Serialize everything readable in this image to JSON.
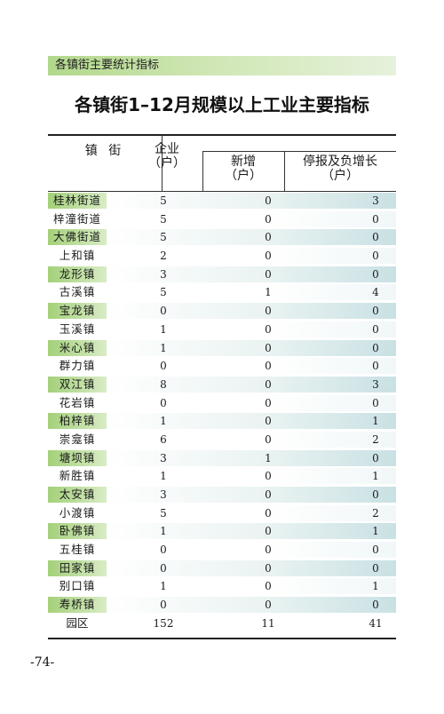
{
  "section_label": "各镇街主要统计指标",
  "title": "各镇街1–12月规模以上工业主要指标",
  "headers": {
    "town": "镇  街",
    "enterprise": "企业",
    "enterprise_unit": "（户）",
    "new": "新增",
    "new_unit": "（户）",
    "stopped": "停报及负增长",
    "stopped_unit": "（户）"
  },
  "rows": [
    {
      "name": "桂林街道",
      "enterprises": "5",
      "new": "0",
      "stopped": "3",
      "shaded": true
    },
    {
      "name": "梓潼街道",
      "enterprises": "5",
      "new": "0",
      "stopped": "0",
      "shaded": false
    },
    {
      "name": "大佛街道",
      "enterprises": "5",
      "new": "0",
      "stopped": "0",
      "shaded": true
    },
    {
      "name": "上和镇",
      "enterprises": "2",
      "new": "0",
      "stopped": "0",
      "shaded": false
    },
    {
      "name": "龙形镇",
      "enterprises": "3",
      "new": "0",
      "stopped": "0",
      "shaded": true
    },
    {
      "name": "古溪镇",
      "enterprises": "5",
      "new": "1",
      "stopped": "4",
      "shaded": false
    },
    {
      "name": "宝龙镇",
      "enterprises": "0",
      "new": "0",
      "stopped": "0",
      "shaded": true
    },
    {
      "name": "玉溪镇",
      "enterprises": "1",
      "new": "0",
      "stopped": "0",
      "shaded": false
    },
    {
      "name": "米心镇",
      "enterprises": "1",
      "new": "0",
      "stopped": "0",
      "shaded": true
    },
    {
      "name": "群力镇",
      "enterprises": "0",
      "new": "0",
      "stopped": "0",
      "shaded": false
    },
    {
      "name": "双江镇",
      "enterprises": "8",
      "new": "0",
      "stopped": "3",
      "shaded": true
    },
    {
      "name": "花岩镇",
      "enterprises": "0",
      "new": "0",
      "stopped": "0",
      "shaded": false
    },
    {
      "name": "柏梓镇",
      "enterprises": "1",
      "new": "0",
      "stopped": "1",
      "shaded": true
    },
    {
      "name": "崇龛镇",
      "enterprises": "6",
      "new": "0",
      "stopped": "2",
      "shaded": false
    },
    {
      "name": "塘坝镇",
      "enterprises": "3",
      "new": "1",
      "stopped": "0",
      "shaded": true
    },
    {
      "name": "新胜镇",
      "enterprises": "1",
      "new": "0",
      "stopped": "1",
      "shaded": false
    },
    {
      "name": "太安镇",
      "enterprises": "3",
      "new": "0",
      "stopped": "0",
      "shaded": true
    },
    {
      "name": "小渡镇",
      "enterprises": "5",
      "new": "0",
      "stopped": "2",
      "shaded": false
    },
    {
      "name": "卧佛镇",
      "enterprises": "1",
      "new": "0",
      "stopped": "1",
      "shaded": true
    },
    {
      "name": "五桂镇",
      "enterprises": "0",
      "new": "0",
      "stopped": "0",
      "shaded": false
    },
    {
      "name": "田家镇",
      "enterprises": "0",
      "new": "0",
      "stopped": "0",
      "shaded": true
    },
    {
      "name": "别口镇",
      "enterprises": "1",
      "new": "0",
      "stopped": "1",
      "shaded": false
    },
    {
      "name": "寿桥镇",
      "enterprises": "0",
      "new": "0",
      "stopped": "0",
      "shaded": true
    },
    {
      "name": "园区",
      "enterprises": "152",
      "new": "11",
      "stopped": "41",
      "shaded": false,
      "total": true
    }
  ],
  "page_number": "-74-",
  "colors": {
    "green_accent": "#a4d07a",
    "section_bar": "#b2d88c",
    "blue_tint": "#c9e1e4"
  }
}
